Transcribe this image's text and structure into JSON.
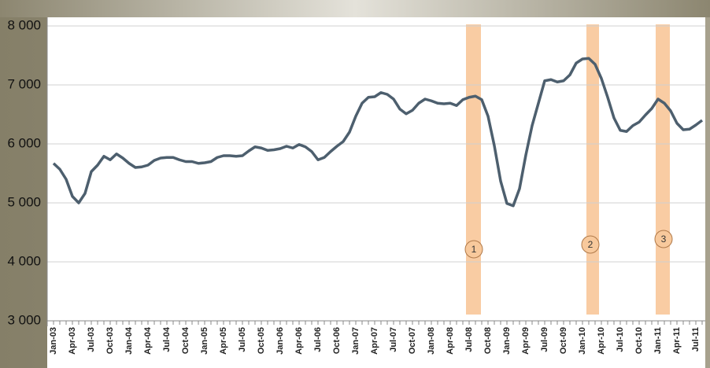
{
  "chart_data": {
    "type": "line",
    "categories": [
      "Jan-03",
      null,
      null,
      "Apr-03",
      null,
      null,
      "Jul-03",
      null,
      null,
      "Oct-03",
      null,
      null,
      "Jan-04",
      null,
      null,
      "Apr-04",
      null,
      null,
      "Jul-04",
      null,
      null,
      "Oct-04",
      null,
      null,
      "Jan-05",
      null,
      null,
      "Apr-05",
      null,
      null,
      "Jul-05",
      null,
      null,
      "Oct-05",
      null,
      null,
      "Jan-06",
      null,
      null,
      "Apr-06",
      null,
      null,
      "Jul-06",
      null,
      null,
      "Oct-06",
      null,
      null,
      "Jan-07",
      null,
      null,
      "Apr-07",
      null,
      null,
      "Jul-07",
      null,
      null,
      "Oct-07",
      null,
      null,
      "Jan-08",
      null,
      null,
      "Apr-08",
      null,
      null,
      "Jul-08",
      null,
      null,
      "Oct-08",
      null,
      null,
      "Jan-09",
      null,
      null,
      "Apr-09",
      null,
      null,
      "Jul-09",
      null,
      null,
      "Oct-09",
      null,
      null,
      "Jan-10",
      null,
      null,
      "Apr-10",
      null,
      null,
      "Jul-10",
      null,
      null,
      "Oct-10",
      null,
      null,
      "Jan-11",
      null,
      null,
      "Apr-11",
      null,
      null,
      "Jul-11",
      null
    ],
    "values": [
      5670,
      5570,
      5400,
      5110,
      5000,
      5160,
      5530,
      5640,
      5790,
      5730,
      5830,
      5760,
      5670,
      5600,
      5610,
      5640,
      5720,
      5760,
      5770,
      5770,
      5730,
      5700,
      5700,
      5670,
      5680,
      5700,
      5770,
      5800,
      5800,
      5790,
      5800,
      5880,
      5950,
      5930,
      5890,
      5900,
      5920,
      5960,
      5930,
      5990,
      5950,
      5870,
      5730,
      5770,
      5870,
      5960,
      6040,
      6200,
      6470,
      6690,
      6790,
      6800,
      6870,
      6840,
      6760,
      6590,
      6510,
      6570,
      6690,
      6760,
      6730,
      6690,
      6680,
      6690,
      6650,
      6750,
      6790,
      6810,
      6750,
      6470,
      5970,
      5370,
      4990,
      4950,
      5240,
      5810,
      6310,
      6690,
      7070,
      7090,
      7050,
      7070,
      7170,
      7370,
      7440,
      7450,
      7350,
      7110,
      6790,
      6440,
      6230,
      6210,
      6310,
      6370,
      6490,
      6600,
      6760,
      6690,
      6560,
      6350,
      6240,
      6250,
      6320,
      6400
    ],
    "color": "#4d5f6e",
    "ylim": [
      3000,
      8000
    ],
    "yticks": [
      {
        "value": 3000,
        "label": "3 000"
      },
      {
        "value": 4000,
        "label": "4 000"
      },
      {
        "value": 5000,
        "label": "5 000"
      },
      {
        "value": 6000,
        "label": "6 000"
      },
      {
        "value": 7000,
        "label": "7 000"
      },
      {
        "value": 8000,
        "label": "8 000"
      }
    ],
    "grid": true,
    "annotations": [
      "1",
      "2",
      "3"
    ]
  }
}
